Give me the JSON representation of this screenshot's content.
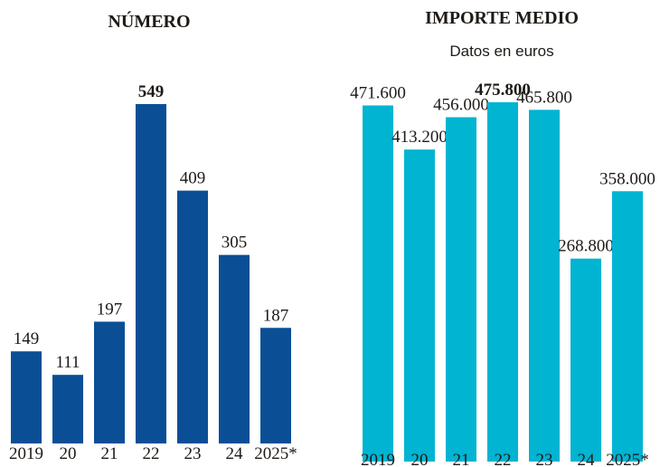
{
  "chart_data": [
    {
      "type": "bar",
      "title": "NÚMERO",
      "categories": [
        "2019",
        "20",
        "21",
        "22",
        "23",
        "24",
        "2025*"
      ],
      "values": [
        149,
        111,
        197,
        549,
        409,
        305,
        187
      ],
      "color": "#0a4f96"
    },
    {
      "type": "bar",
      "title": "IMPORTE MEDIO",
      "subtitle": "Datos en euros",
      "categories": [
        "2019",
        "20",
        "21",
        "22",
        "23",
        "24",
        "2025*"
      ],
      "values": [
        471600,
        413200,
        456000,
        475800,
        465800,
        268800,
        358000
      ],
      "value_labels": [
        "471.600",
        "413.200",
        "456.000",
        "475.800",
        "465.800",
        "268.800",
        "358.000"
      ],
      "color": "#00b4d2"
    }
  ]
}
